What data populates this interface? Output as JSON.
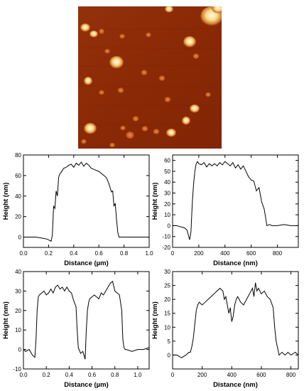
{
  "afm_image": {
    "colors": {
      "background": "#8f2a06",
      "dark": "#6e1c03",
      "mid": "#c5561a",
      "bright": "#fbe7a6"
    }
  },
  "chart_data": [
    {
      "type": "line",
      "xlabel": "Distance (µm)",
      "ylabel": "Height (nm)",
      "xlim": [
        0,
        1.0
      ],
      "ylim": [
        -10,
        80
      ],
      "xticks": [
        0.0,
        0.2,
        0.4,
        0.6,
        0.8,
        1.0
      ],
      "xtick_labels": [
        "0.0",
        "0.2",
        "0.4",
        "0.6",
        "0.8",
        "1.0"
      ],
      "yticks": [
        0,
        20,
        40,
        60,
        80
      ],
      "ytick_labels": [
        "0",
        "20",
        "40",
        "60",
        "80"
      ],
      "series": [
        {
          "x": [
            0.0,
            0.05,
            0.1,
            0.15,
            0.19,
            0.22,
            0.23,
            0.24,
            0.25,
            0.26,
            0.27,
            0.28,
            0.29,
            0.3,
            0.32,
            0.34,
            0.36,
            0.38,
            0.4,
            0.42,
            0.44,
            0.46,
            0.48,
            0.5,
            0.52,
            0.54,
            0.56,
            0.58,
            0.6,
            0.62,
            0.64,
            0.66,
            0.68,
            0.7,
            0.71,
            0.72,
            0.73,
            0.74,
            0.75,
            0.76,
            0.78,
            0.8,
            0.85,
            0.9,
            0.95,
            1.0
          ],
          "y": [
            0,
            0,
            0,
            -1,
            -2,
            -4,
            2,
            30,
            28,
            45,
            40,
            58,
            62,
            63,
            67,
            68,
            70,
            71,
            68,
            72,
            70,
            73,
            69,
            72,
            70,
            67,
            66,
            65,
            64,
            62,
            60,
            58,
            52,
            44,
            45,
            30,
            33,
            18,
            5,
            0,
            0,
            0,
            0,
            0,
            0,
            0
          ]
        }
      ]
    },
    {
      "type": "line",
      "xlabel": "Distance (nm)",
      "ylabel": "Height (nm)",
      "xlim": [
        0,
        960
      ],
      "ylim": [
        -20,
        65
      ],
      "xticks": [
        0,
        200,
        400,
        600,
        800
      ],
      "xtick_labels": [
        "0",
        "200",
        "400",
        "600",
        "800"
      ],
      "yticks": [
        -20,
        -10,
        0,
        10,
        20,
        30,
        40,
        50,
        60
      ],
      "ytick_labels": [
        "-20",
        "-10",
        "0",
        "10",
        "20",
        "30",
        "40",
        "50",
        "60"
      ],
      "series": [
        {
          "x": [
            0,
            30,
            60,
            90,
            110,
            130,
            140,
            150,
            160,
            170,
            180,
            190,
            200,
            220,
            240,
            260,
            280,
            300,
            320,
            340,
            360,
            380,
            400,
            420,
            440,
            460,
            480,
            500,
            520,
            540,
            560,
            580,
            600,
            620,
            640,
            660,
            680,
            700,
            720,
            740,
            760,
            800,
            850,
            900,
            960
          ],
          "y": [
            0,
            0,
            -1,
            -2,
            -4,
            -13,
            -6,
            20,
            38,
            50,
            57,
            59,
            57,
            56,
            58,
            54,
            57,
            55,
            57,
            55,
            58,
            56,
            59,
            57,
            55,
            58,
            53,
            56,
            52,
            55,
            50,
            45,
            42,
            41,
            32,
            35,
            22,
            15,
            0,
            1,
            0,
            0,
            1,
            0,
            0
          ]
        }
      ]
    },
    {
      "type": "line",
      "xlabel": "Distance (µm)",
      "ylabel": "Height (nm)",
      "xlim": [
        0,
        1.1
      ],
      "ylim": [
        -10,
        40
      ],
      "xticks": [
        0.0,
        0.2,
        0.4,
        0.6,
        0.8,
        1.0
      ],
      "xtick_labels": [
        "0.0",
        "0.2",
        "0.4",
        "0.6",
        "0.8",
        "1.0"
      ],
      "yticks": [
        -10,
        0,
        10,
        20,
        30,
        40
      ],
      "ytick_labels": [
        "-10",
        "0",
        "10",
        "20",
        "30",
        "40"
      ],
      "series": [
        {
          "x": [
            0.0,
            0.02,
            0.05,
            0.08,
            0.1,
            0.11,
            0.12,
            0.13,
            0.14,
            0.16,
            0.18,
            0.2,
            0.22,
            0.24,
            0.26,
            0.28,
            0.3,
            0.32,
            0.34,
            0.36,
            0.38,
            0.4,
            0.42,
            0.44,
            0.46,
            0.47,
            0.48,
            0.5,
            0.52,
            0.54,
            0.55,
            0.56,
            0.57,
            0.58,
            0.6,
            0.62,
            0.64,
            0.66,
            0.68,
            0.7,
            0.72,
            0.74,
            0.76,
            0.78,
            0.8,
            0.82,
            0.84,
            0.86,
            0.87,
            0.88,
            0.89,
            0.9,
            0.95,
            1.0,
            1.05,
            1.1
          ],
          "y": [
            0,
            -1,
            0,
            -3,
            -4,
            5,
            20,
            27,
            28,
            29,
            30,
            28,
            29,
            31,
            29,
            32,
            33,
            31,
            32,
            30,
            32,
            30,
            29,
            25,
            22,
            10,
            1,
            -2,
            -1,
            -5,
            10,
            20,
            24,
            26,
            27,
            28,
            27,
            26,
            29,
            28,
            30,
            32,
            34,
            35,
            30,
            29,
            28,
            20,
            5,
            1,
            0,
            0,
            -1,
            0,
            0,
            1
          ]
        }
      ]
    },
    {
      "type": "line",
      "xlabel": "Distance (nm)",
      "ylabel": "Height (nm)",
      "xlim": [
        0,
        850
      ],
      "ylim": [
        -5,
        30
      ],
      "xticks": [
        0,
        200,
        400,
        600,
        800
      ],
      "xtick_labels": [
        "0",
        "200",
        "400",
        "600",
        "800"
      ],
      "yticks": [
        0,
        5,
        10,
        15,
        20,
        25,
        30
      ],
      "ytick_labels": [
        "0",
        "5",
        "10",
        "15",
        "20",
        "25",
        "30"
      ],
      "series": [
        {
          "x": [
            0,
            30,
            60,
            90,
            110,
            120,
            130,
            140,
            150,
            160,
            170,
            180,
            200,
            220,
            240,
            260,
            280,
            300,
            320,
            340,
            350,
            360,
            370,
            380,
            390,
            400,
            410,
            420,
            430,
            440,
            460,
            480,
            500,
            520,
            540,
            550,
            560,
            570,
            580,
            600,
            620,
            640,
            660,
            680,
            690,
            700,
            720,
            740,
            760,
            780,
            800,
            830,
            850
          ],
          "y": [
            0,
            0,
            -1,
            0,
            1,
            1,
            3,
            6,
            11,
            16,
            18,
            19,
            18,
            19,
            20,
            21,
            22,
            23,
            24,
            23,
            20,
            21,
            18,
            15,
            17,
            12,
            14,
            18,
            20,
            21,
            19,
            18,
            20,
            22,
            24,
            21,
            26,
            23,
            24,
            22,
            23,
            21,
            20,
            17,
            10,
            5,
            0,
            1,
            0,
            1,
            0,
            1,
            0
          ]
        }
      ]
    }
  ]
}
